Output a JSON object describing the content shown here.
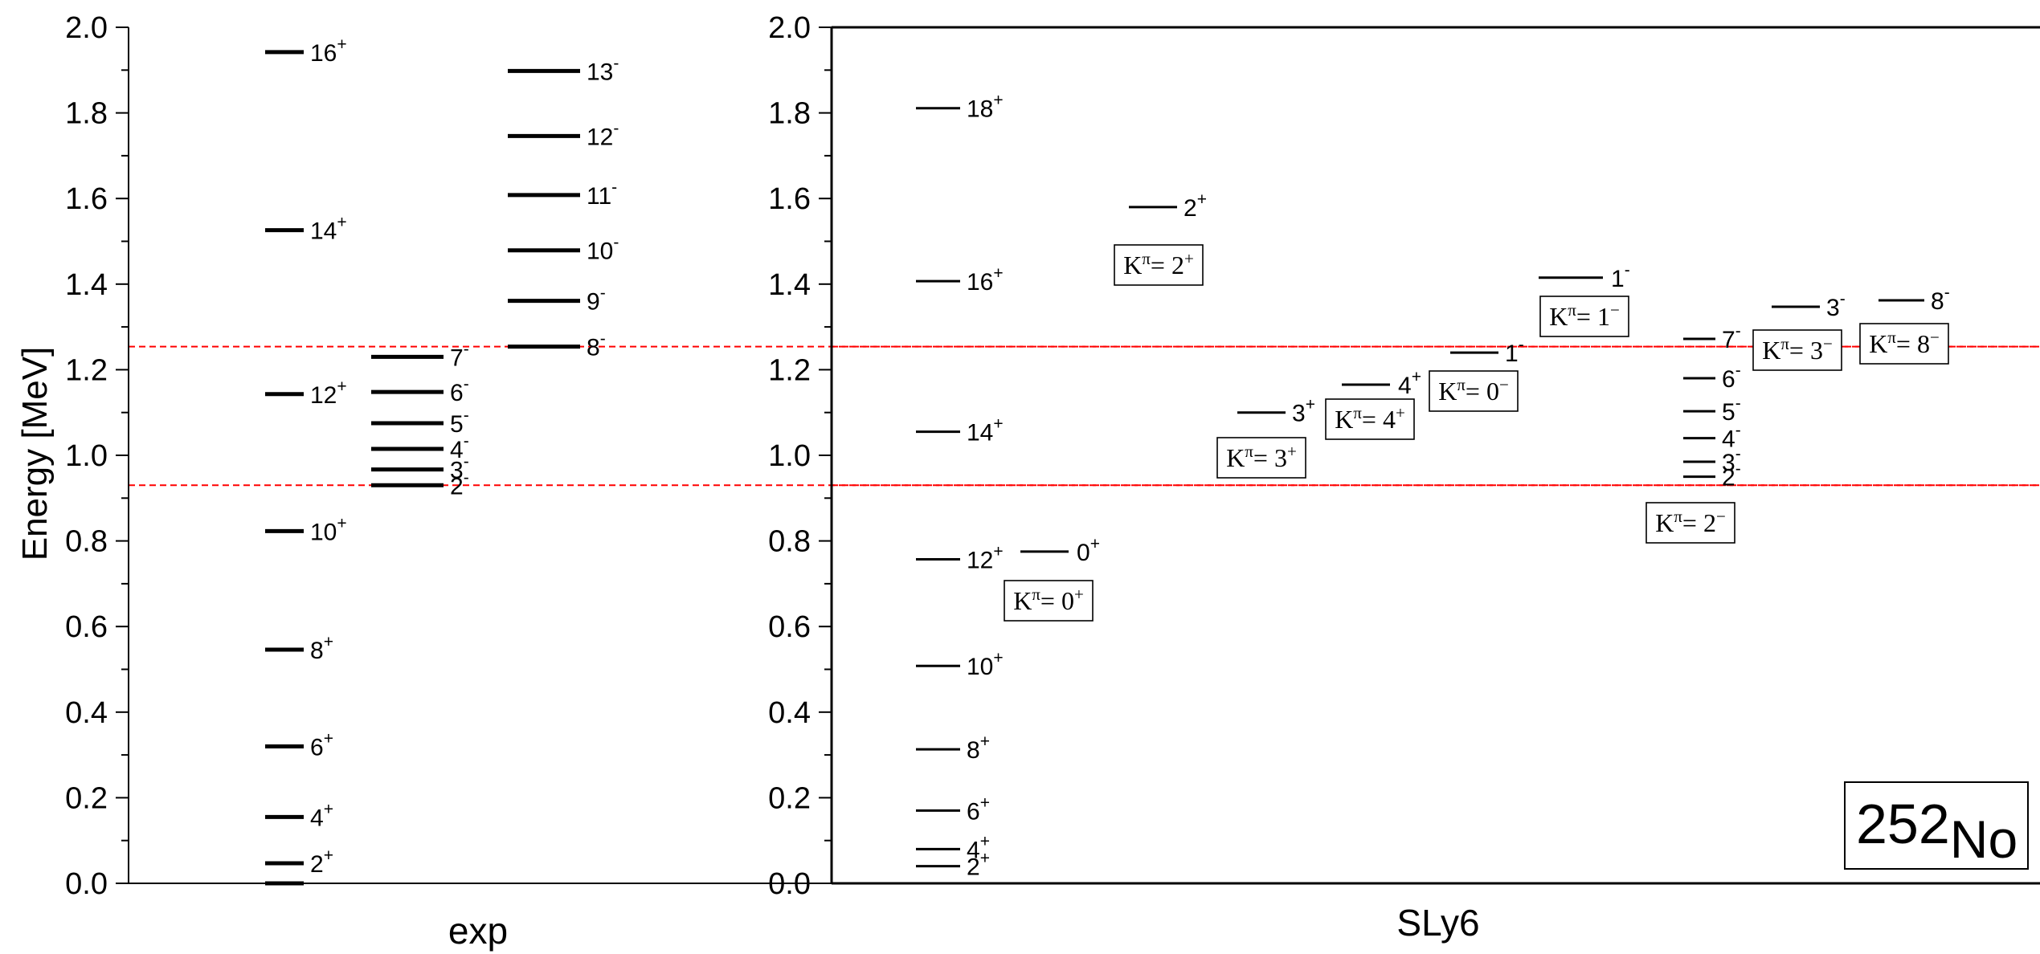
{
  "chart_data": [
    {
      "type": "level-scheme",
      "panel": "exp",
      "xlabel": "exp",
      "ylabel": "Energy [MeV]",
      "ylim": [
        0.0,
        2.0
      ],
      "yticks": [
        "0.0",
        "0.2",
        "0.4",
        "0.6",
        "0.8",
        "1.0",
        "1.2",
        "1.4",
        "1.6",
        "1.8",
        "2.0"
      ],
      "bands": [
        {
          "levels": [
            {
              "e": 0.0,
              "j": ""
            },
            {
              "e": 0.047,
              "j": "2",
              "p": "+"
            },
            {
              "e": 0.155,
              "j": "4",
              "p": "+"
            },
            {
              "e": 0.32,
              "j": "6",
              "p": "+"
            },
            {
              "e": 0.546,
              "j": "8",
              "p": "+"
            },
            {
              "e": 0.823,
              "j": "10",
              "p": "+"
            },
            {
              "e": 1.143,
              "j": "12",
              "p": "+"
            },
            {
              "e": 1.526,
              "j": "14",
              "p": "+"
            },
            {
              "e": 1.942,
              "j": "16",
              "p": "+"
            }
          ]
        },
        {
          "levels": [
            {
              "e": 0.93,
              "j": "2",
              "p": "-"
            },
            {
              "e": 0.967,
              "j": "3",
              "p": "-"
            },
            {
              "e": 1.015,
              "j": "4",
              "p": "-"
            },
            {
              "e": 1.075,
              "j": "5",
              "p": "-"
            },
            {
              "e": 1.148,
              "j": "6",
              "p": "-"
            },
            {
              "e": 1.23,
              "j": "7",
              "p": "-"
            }
          ]
        },
        {
          "levels": [
            {
              "e": 1.254,
              "j": "8",
              "p": "-"
            },
            {
              "e": 1.361,
              "j": "9",
              "p": "-"
            },
            {
              "e": 1.479,
              "j": "10",
              "p": "-"
            },
            {
              "e": 1.608,
              "j": "11",
              "p": "-"
            },
            {
              "e": 1.746,
              "j": "12",
              "p": "-"
            },
            {
              "e": 1.898,
              "j": "13",
              "p": "-"
            }
          ]
        }
      ],
      "reference_lines": [
        1.254,
        0.93
      ],
      "reference_color": "#ff0000"
    },
    {
      "type": "level-scheme",
      "panel": "SLy6",
      "xlabel": "SLy6",
      "ylim": [
        0.0,
        2.0
      ],
      "yticks": [
        "0.0",
        "0.2",
        "0.4",
        "0.6",
        "0.8",
        "1.0",
        "1.2",
        "1.4",
        "1.6",
        "1.8",
        "2.0"
      ],
      "nucleus": {
        "mass": "252",
        "symbol": "No"
      },
      "bands": [
        {
          "levels": [
            {
              "e": 0.0,
              "j": ""
            },
            {
              "e": 0.04,
              "j": "2",
              "p": "+"
            },
            {
              "e": 0.08,
              "j": "4",
              "p": "+"
            },
            {
              "e": 0.17,
              "j": "6",
              "p": "+"
            },
            {
              "e": 0.313,
              "j": "8",
              "p": "+"
            },
            {
              "e": 0.508,
              "j": "10",
              "p": "+"
            },
            {
              "e": 0.757,
              "j": "12",
              "p": "+"
            },
            {
              "e": 1.055,
              "j": "14",
              "p": "+"
            },
            {
              "e": 1.407,
              "j": "16",
              "p": "+"
            },
            {
              "e": 1.811,
              "j": "18",
              "p": "+"
            }
          ]
        },
        {
          "k_label": {
            "k": "K",
            "pi": "π",
            "val": "0",
            "sign": "+"
          },
          "levels": [
            {
              "e": 0.775,
              "j": "0",
              "p": "+"
            }
          ]
        },
        {
          "k_label": {
            "k": "K",
            "pi": "π",
            "val": "2",
            "sign": "+"
          },
          "levels": [
            {
              "e": 1.58,
              "j": "2",
              "p": "+"
            }
          ]
        },
        {
          "k_label": {
            "k": "K",
            "pi": "π",
            "val": "3",
            "sign": "+"
          },
          "levels": [
            {
              "e": 1.1,
              "j": "3",
              "p": "+"
            }
          ]
        },
        {
          "k_label": {
            "k": "K",
            "pi": "π",
            "val": "4",
            "sign": "+"
          },
          "levels": [
            {
              "e": 1.165,
              "j": "4",
              "p": "+"
            }
          ]
        },
        {
          "k_label": {
            "k": "K",
            "pi": "π",
            "val": "0",
            "sign": "−"
          },
          "levels": [
            {
              "e": 1.24,
              "j": "1",
              "p": "-"
            }
          ]
        },
        {
          "k_label": {
            "k": "K",
            "pi": "π",
            "val": "1",
            "sign": "−"
          },
          "levels": [
            {
              "e": 1.415,
              "j": "1",
              "p": "-"
            }
          ]
        },
        {
          "k_label": {
            "k": "K",
            "pi": "π",
            "val": "2",
            "sign": "−"
          },
          "levels": [
            {
              "e": 0.95,
              "j": "2",
              "p": "-"
            },
            {
              "e": 0.985,
              "j": "3",
              "p": "-"
            },
            {
              "e": 1.04,
              "j": "4",
              "p": "-"
            },
            {
              "e": 1.103,
              "j": "5",
              "p": "-"
            },
            {
              "e": 1.18,
              "j": "6",
              "p": "-"
            },
            {
              "e": 1.272,
              "j": "7",
              "p": "-"
            }
          ]
        },
        {
          "k_label": {
            "k": "K",
            "pi": "π",
            "val": "3",
            "sign": "−"
          },
          "levels": [
            {
              "e": 1.347,
              "j": "3",
              "p": "-"
            }
          ]
        },
        {
          "k_label": {
            "k": "K",
            "pi": "π",
            "val": "8",
            "sign": "−"
          },
          "levels": [
            {
              "e": 1.362,
              "j": "8",
              "p": "-"
            }
          ]
        }
      ],
      "reference_lines": [
        1.254,
        0.93
      ],
      "reference_color": "#ff0000"
    }
  ]
}
